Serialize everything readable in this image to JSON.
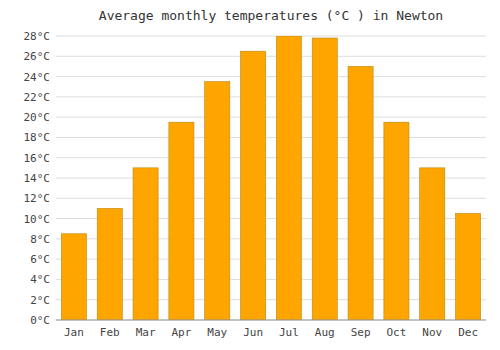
{
  "chart_data": {
    "type": "bar",
    "title": "Average monthly temperatures (°C ) in Newton",
    "categories": [
      "Jan",
      "Feb",
      "Mar",
      "Apr",
      "May",
      "Jun",
      "Jul",
      "Aug",
      "Sep",
      "Oct",
      "Nov",
      "Dec"
    ],
    "values": [
      8.5,
      11.0,
      15.0,
      19.5,
      23.5,
      26.5,
      28.0,
      27.8,
      25.0,
      19.5,
      15.0,
      10.5
    ],
    "color": "#FFA500",
    "ylim": [
      0,
      28
    ],
    "yticks": [
      {
        "value": 0,
        "label": "0°C"
      },
      {
        "value": 2,
        "label": "2°C"
      },
      {
        "value": 4,
        "label": "4°C"
      },
      {
        "value": 6,
        "label": "6°C"
      },
      {
        "value": 8,
        "label": "8°C"
      },
      {
        "value": 10,
        "label": "10°C"
      },
      {
        "value": 12,
        "label": "12°C"
      },
      {
        "value": 14,
        "label": "14°C"
      },
      {
        "value": 16,
        "label": "16°C"
      },
      {
        "value": 18,
        "label": "18°C"
      },
      {
        "value": 20,
        "label": "20°C"
      },
      {
        "value": 22,
        "label": "22°C"
      },
      {
        "value": 24,
        "label": "24°C"
      },
      {
        "value": 26,
        "label": "26°C"
      },
      {
        "value": 28,
        "label": "28°C"
      }
    ],
    "grid": true
  }
}
